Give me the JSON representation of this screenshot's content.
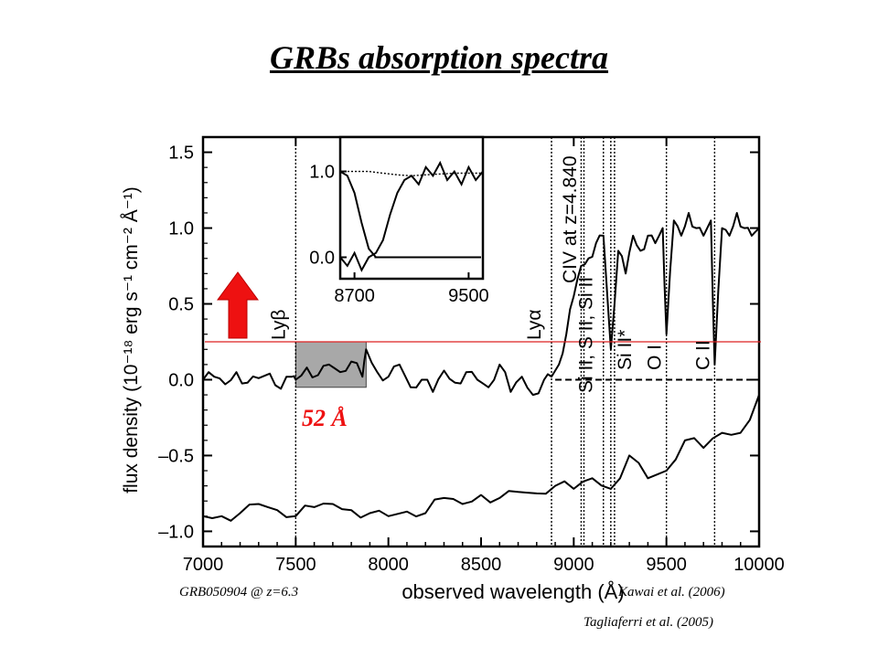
{
  "slide": {
    "title": "GRBs absorption spectra",
    "object_label": "GRB050904 @ z=6.3",
    "citation_1": "Kawai et al. (2006)",
    "citation_2": "Tagliaferri et al. (2005)",
    "highlight_width_label": "52 Å"
  },
  "colors": {
    "arrow": "#ee1111",
    "threshold_line": "#dd2222",
    "highlight_fill": "#a8a8a8",
    "width_label": "#ee1111"
  },
  "chart_data": [
    {
      "type": "line",
      "xlabel": "observed wavelength (Å)",
      "ylabel": "flux density (10⁻¹⁸ erg s⁻¹ cm⁻² Å⁻¹)",
      "xlim": [
        7000,
        10000
      ],
      "ylim": [
        -1.1,
        1.6
      ],
      "x_ticks": [
        "7000",
        "7500",
        "8000",
        "8500",
        "9000",
        "9500",
        "10000"
      ],
      "y_ticks": [
        "1.5",
        "1.0",
        "0.5",
        "0.0",
        "–0.5",
        "–1.0"
      ],
      "grid": false,
      "line_annotations": [
        {
          "x": 7500,
          "label": "Lyβ"
        },
        {
          "x": 8880,
          "label": "Lyα"
        },
        {
          "x": 9040,
          "label": "Si II, S II, Si II"
        },
        {
          "x": 9055,
          "label": ""
        },
        {
          "x": 9160,
          "label": "CIV at z=4.840"
        },
        {
          "x": 9200,
          "label": "Si II*"
        },
        {
          "x": 9220,
          "label": ""
        },
        {
          "x": 9500,
          "label": "O I"
        },
        {
          "x": 9760,
          "label": "C II"
        }
      ],
      "zero_level_dashed_from_x": 8900,
      "highlight_region": {
        "x": [
          7500,
          7880
        ],
        "y": [
          -0.05,
          0.25
        ]
      },
      "reference_level_y": 0.25,
      "series": [
        {
          "x": [
            7000,
            7060,
            7120,
            7180,
            7240,
            7300,
            7360,
            7420,
            7480,
            7500,
            7560,
            7620,
            7680,
            7740,
            7800,
            7860,
            7880,
            7940,
            8000,
            8060,
            8120,
            8180,
            8240,
            8300,
            8360,
            8420,
            8480,
            8540,
            8600,
            8660,
            8720,
            8780,
            8840,
            8880,
            8920,
            8960,
            9000,
            9040,
            9080,
            9120,
            9160,
            9200,
            9240,
            9280,
            9320,
            9360,
            9400,
            9440,
            9480,
            9500,
            9540,
            9580,
            9620,
            9660,
            9700,
            9740,
            9760,
            9800,
            9840,
            9880,
            9920,
            9960,
            10000
          ],
          "y": [
            0.0,
            0.02,
            -0.03,
            0.05,
            -0.02,
            0.01,
            0.04,
            -0.06,
            0.02,
            0.0,
            0.08,
            0.03,
            0.1,
            0.05,
            0.12,
            0.02,
            0.2,
            0.05,
            0.02,
            0.1,
            -0.05,
            0.0,
            -0.08,
            0.06,
            -0.02,
            0.05,
            0.0,
            -0.05,
            0.1,
            -0.08,
            0.02,
            -0.1,
            0.0,
            0.02,
            0.1,
            0.3,
            0.55,
            0.75,
            0.8,
            0.9,
            0.95,
            0.2,
            0.85,
            0.7,
            0.95,
            0.85,
            0.95,
            0.9,
            1.0,
            0.3,
            1.05,
            0.95,
            1.1,
            1.0,
            0.95,
            1.05,
            0.1,
            1.0,
            0.95,
            1.1,
            1.0,
            0.95,
            1.0
          ]
        },
        {
          "x": [
            7000,
            7100,
            7200,
            7300,
            7400,
            7500,
            7600,
            7700,
            7800,
            7900,
            8000,
            8100,
            8200,
            8300,
            8400,
            8500,
            8600,
            8700,
            8800,
            8900,
            9000,
            9100,
            9200,
            9300,
            9400,
            9500,
            9600,
            9700,
            9800,
            9900,
            10000
          ],
          "y": [
            -0.9,
            -0.9,
            -0.88,
            -0.82,
            -0.86,
            -0.9,
            -0.84,
            -0.82,
            -0.86,
            -0.88,
            -0.9,
            -0.87,
            -0.88,
            -0.78,
            -0.82,
            -0.76,
            -0.78,
            -0.74,
            -0.75,
            -0.7,
            -0.72,
            -0.65,
            -0.72,
            -0.5,
            -0.65,
            -0.6,
            -0.4,
            -0.45,
            -0.35,
            -0.35,
            -0.1
          ]
        }
      ]
    },
    {
      "type": "line",
      "xlim": [
        8600,
        9600
      ],
      "ylim": [
        -0.25,
        1.4
      ],
      "x_ticks": [
        "8700",
        "9500"
      ],
      "y_ticks": [
        "1.0",
        "0.0"
      ],
      "grid": false,
      "series": [
        {
          "x": [
            8600,
            8650,
            8700,
            8750,
            8800,
            8850,
            8900,
            8950,
            9000,
            9050,
            9100,
            9150,
            9200,
            9250,
            9300,
            9350,
            9400,
            9450,
            9500,
            9550,
            9600
          ],
          "y": [
            0.0,
            -0.1,
            0.05,
            -0.15,
            0.0,
            0.05,
            0.2,
            0.5,
            0.75,
            0.9,
            0.95,
            0.85,
            1.05,
            0.95,
            1.1,
            0.9,
            1.0,
            0.85,
            1.05,
            0.9,
            1.0
          ]
        },
        {
          "x": [
            8600,
            8650,
            8700,
            8750,
            8800,
            8850,
            8900,
            8950,
            9000
          ],
          "y": [
            1.0,
            0.95,
            0.75,
            0.4,
            0.1,
            0.0,
            0.0,
            0.0,
            0.0
          ]
        },
        {
          "x": [
            8600,
            8800,
            8900,
            9000,
            9100,
            9200,
            9300,
            9400,
            9500,
            9600
          ],
          "y": [
            1.0,
            1.0,
            0.98,
            0.96,
            0.95,
            0.96,
            0.97,
            0.98,
            0.98,
            0.98
          ]
        }
      ]
    }
  ]
}
